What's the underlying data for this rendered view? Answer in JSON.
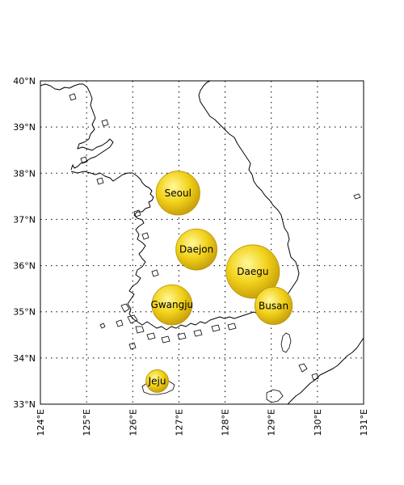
{
  "chart_data": {
    "type": "map-bubble",
    "projection": "equirectangular",
    "lon_range": [
      124,
      131
    ],
    "lat_range": [
      33,
      40
    ],
    "grid": true,
    "lat_ticks": [
      {
        "value": 33,
        "label": "33°N"
      },
      {
        "value": 34,
        "label": "34°N"
      },
      {
        "value": 35,
        "label": "35°N"
      },
      {
        "value": 36,
        "label": "36°N"
      },
      {
        "value": 37,
        "label": "37°N"
      },
      {
        "value": 38,
        "label": "38°N"
      },
      {
        "value": 39,
        "label": "39°N"
      },
      {
        "value": 40,
        "label": "40°N"
      }
    ],
    "lon_ticks": [
      {
        "value": 124,
        "label": "124°E"
      },
      {
        "value": 125,
        "label": "125°E"
      },
      {
        "value": 126,
        "label": "126°E"
      },
      {
        "value": 127,
        "label": "127°E"
      },
      {
        "value": 128,
        "label": "128°E"
      },
      {
        "value": 129,
        "label": "129°E"
      },
      {
        "value": 130,
        "label": "130°E"
      },
      {
        "value": 131,
        "label": "131°E"
      }
    ],
    "cities": [
      {
        "name": "Seoul",
        "lon": 126.98,
        "lat": 37.57,
        "size": 0.97
      },
      {
        "name": "Daejon",
        "lon": 127.38,
        "lat": 36.35,
        "size": 0.91
      },
      {
        "name": "Daegu",
        "lon": 128.6,
        "lat": 35.87,
        "size": 1.18
      },
      {
        "name": "Busan",
        "lon": 129.05,
        "lat": 35.13,
        "size": 0.83
      },
      {
        "name": "Gwangju",
        "lon": 126.85,
        "lat": 35.15,
        "size": 0.89
      },
      {
        "name": "Jeju",
        "lon": 126.53,
        "lat": 33.5,
        "size": 0.5
      }
    ],
    "marker_color": "#f2d21a",
    "marker_highlight": "#fff89a",
    "marker_edge": "#b8930a"
  }
}
